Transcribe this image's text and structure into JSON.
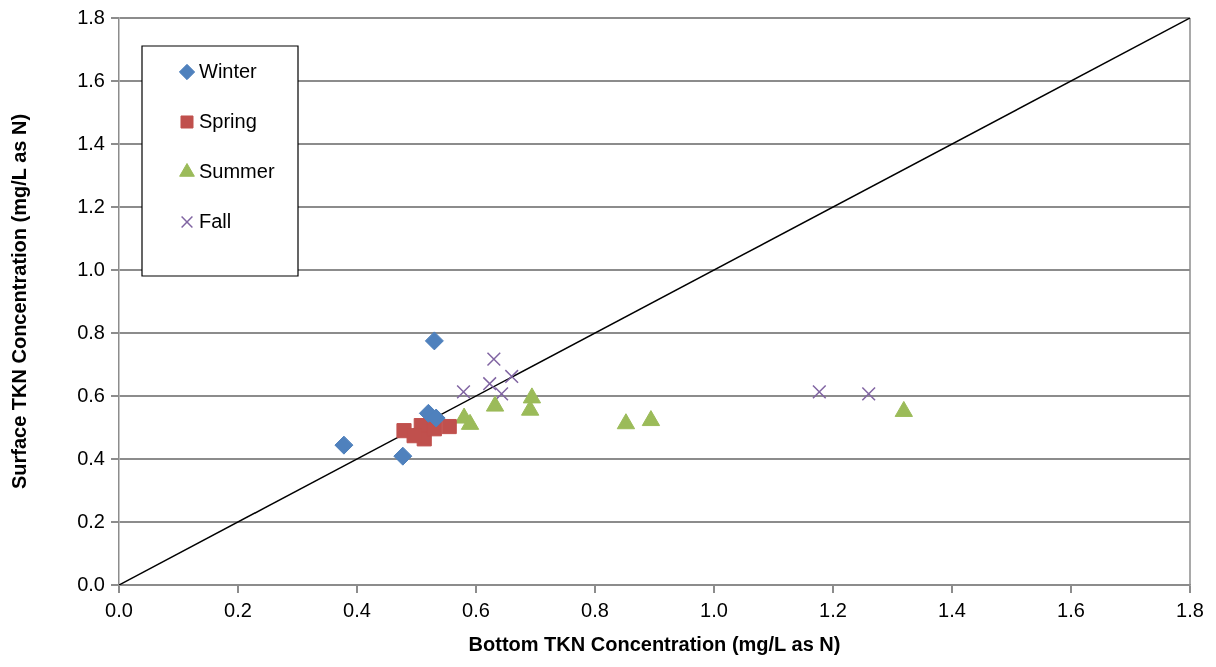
{
  "chart_data": {
    "type": "scatter",
    "xlabel": "Bottom TKN Concentration (mg/L as N)",
    "ylabel": "Surface TKN Concentration (mg/L as N)",
    "xlim": [
      0,
      1.8
    ],
    "ylim": [
      0,
      1.8
    ],
    "xticks": [
      {
        "value": 0,
        "label": "0.0"
      },
      {
        "value": 0.2,
        "label": "0.2"
      },
      {
        "value": 0.4,
        "label": "0.4"
      },
      {
        "value": 0.6,
        "label": "0.6"
      },
      {
        "value": 0.8,
        "label": "0.8"
      },
      {
        "value": 1,
        "label": "1.0"
      },
      {
        "value": 1.2,
        "label": "1.2"
      },
      {
        "value": 1.4,
        "label": "1.4"
      },
      {
        "value": 1.6,
        "label": "1.6"
      },
      {
        "value": 1.8,
        "label": "1.8"
      }
    ],
    "yticks": [
      {
        "value": 0,
        "label": "0.0"
      },
      {
        "value": 0.2,
        "label": "0.2"
      },
      {
        "value": 0.4,
        "label": "0.4"
      },
      {
        "value": 0.6,
        "label": "0.6"
      },
      {
        "value": 0.8,
        "label": "0.8"
      },
      {
        "value": 1,
        "label": "1.0"
      },
      {
        "value": 1.2,
        "label": "1.2"
      },
      {
        "value": 1.4,
        "label": "1.4"
      },
      {
        "value": 1.6,
        "label": "1.6"
      },
      {
        "value": 1.8,
        "label": "1.8"
      }
    ],
    "grid": "y",
    "legend": "top left",
    "series": [
      {
        "name": "Winter",
        "color": "#4f81bd",
        "marker": "diamond",
        "x": [
          0.378,
          0.477,
          0.53,
          0.52,
          0.533
        ],
        "values": [
          0.444,
          0.409,
          0.775,
          0.545,
          0.53
        ]
      },
      {
        "name": "Spring",
        "color": "#c0504d",
        "marker": "square",
        "x": [
          0.479,
          0.508,
          0.513,
          0.53,
          0.555,
          0.496
        ],
        "values": [
          0.49,
          0.506,
          0.464,
          0.496,
          0.503,
          0.474
        ]
      },
      {
        "name": "Summer",
        "color": "#9bbb59",
        "marker": "triangle",
        "x": [
          0.58,
          0.59,
          0.632,
          0.694,
          0.691,
          0.852,
          0.894,
          1.319
        ],
        "values": [
          0.53,
          0.51,
          0.568,
          0.594,
          0.555,
          0.512,
          0.522,
          0.551
        ]
      },
      {
        "name": "Fall",
        "color": "#8064a2",
        "marker": "cross",
        "x": [
          0.579,
          0.63,
          0.623,
          0.66,
          0.643,
          1.177,
          1.26
        ],
        "values": [
          0.613,
          0.717,
          0.639,
          0.662,
          0.607,
          0.613,
          0.607
        ]
      },
      {
        "type": "line",
        "color": "#000000",
        "marker": "none",
        "x": [
          0,
          1.8
        ],
        "values": [
          0,
          1.8
        ]
      }
    ]
  }
}
